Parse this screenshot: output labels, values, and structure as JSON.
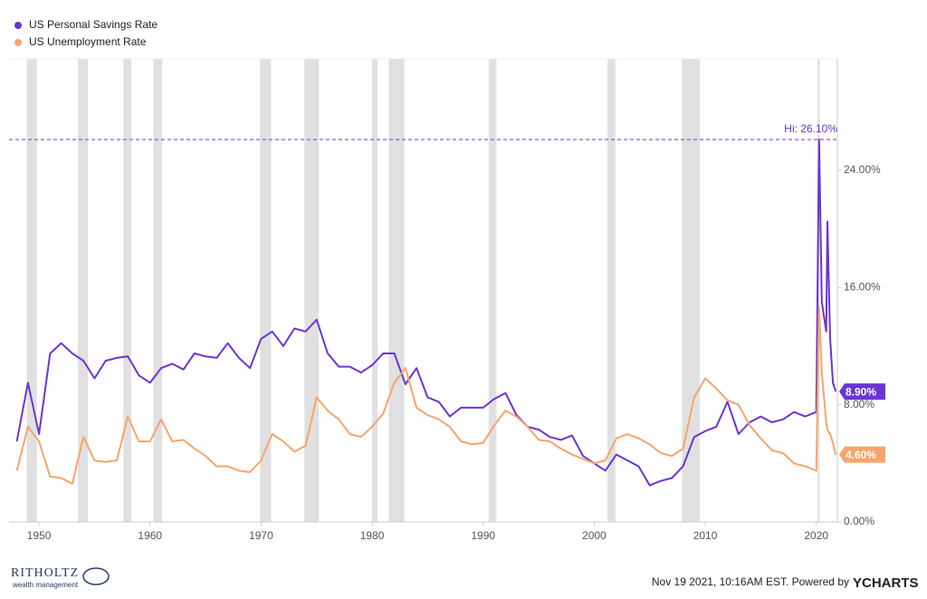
{
  "chart_data": {
    "type": "line",
    "x": [
      1948,
      1949,
      1950,
      1951,
      1952,
      1953,
      1954,
      1955,
      1956,
      1957,
      1958,
      1959,
      1960,
      1961,
      1962,
      1963,
      1964,
      1965,
      1966,
      1967,
      1968,
      1969,
      1970,
      1971,
      1972,
      1973,
      1974,
      1975,
      1976,
      1977,
      1978,
      1979,
      1980,
      1981,
      1982,
      1983,
      1984,
      1985,
      1986,
      1987,
      1988,
      1989,
      1990,
      1991,
      1992,
      1993,
      1994,
      1995,
      1996,
      1997,
      1998,
      1999,
      2000,
      2001,
      2002,
      2003,
      2004,
      2005,
      2006,
      2007,
      2008,
      2009,
      2010,
      2011,
      2012,
      2013,
      2014,
      2015,
      2016,
      2017,
      2018,
      2019,
      2020,
      2020.25,
      2020.5,
      2020.9,
      2021,
      2021.25,
      2021.5,
      2021.75
    ],
    "series": [
      {
        "name": "US Personal Savings Rate",
        "color": "#6a35d4",
        "last_label": "8.90%",
        "values": [
          5.5,
          9.5,
          6,
          11.5,
          12.2,
          11.5,
          11,
          9.8,
          11,
          11.2,
          11.3,
          10,
          9.5,
          10.5,
          10.8,
          10.4,
          11.5,
          11.3,
          11.2,
          12.2,
          11.2,
          10.5,
          12.5,
          13,
          12,
          13.2,
          13,
          13.8,
          11.5,
          10.6,
          10.6,
          10.2,
          10.7,
          11.5,
          11.5,
          9.4,
          10.5,
          8.5,
          8.2,
          7.2,
          7.8,
          7.8,
          7.8,
          8.4,
          8.8,
          7.3,
          6.5,
          6.3,
          5.8,
          5.6,
          5.9,
          4.5,
          4.0,
          3.5,
          4.6,
          4.2,
          3.8,
          2.5,
          2.8,
          3.0,
          3.8,
          5.8,
          6.2,
          6.5,
          8.2,
          6.0,
          6.8,
          7.2,
          6.8,
          7.0,
          7.5,
          7.2,
          7.5,
          26.1,
          15,
          13,
          20.5,
          12.5,
          9.5,
          8.9
        ]
      },
      {
        "name": "US Unemployment Rate",
        "color": "#f6a46c",
        "last_label": "4.60%",
        "values": [
          3.5,
          6.5,
          5.5,
          3.1,
          3.0,
          2.6,
          5.8,
          4.2,
          4.1,
          4.2,
          7.2,
          5.5,
          5.5,
          7.0,
          5.5,
          5.6,
          5.0,
          4.5,
          3.8,
          3.8,
          3.5,
          3.4,
          4.2,
          6.0,
          5.5,
          4.8,
          5.2,
          8.5,
          7.6,
          7.0,
          6.0,
          5.8,
          6.5,
          7.4,
          9.5,
          10.5,
          7.8,
          7.3,
          7.0,
          6.5,
          5.5,
          5.3,
          5.4,
          6.6,
          7.6,
          7.2,
          6.5,
          5.6,
          5.5,
          5.0,
          4.6,
          4.3,
          4.0,
          4.2,
          5.7,
          6.0,
          5.7,
          5.3,
          4.7,
          4.5,
          5.0,
          8.5,
          9.8,
          9.1,
          8.3,
          8.0,
          6.6,
          5.7,
          4.9,
          4.7,
          4.0,
          3.8,
          3.5,
          14.7,
          10.2,
          6.8,
          6.3,
          6.0,
          5.4,
          4.6
        ]
      }
    ],
    "recessions": [
      [
        1948.9,
        1949.8
      ],
      [
        1953.5,
        1954.4
      ],
      [
        1957.6,
        1958.3
      ],
      [
        1960.3,
        1961.1
      ],
      [
        1969.9,
        1970.9
      ],
      [
        1973.9,
        1975.2
      ],
      [
        1980.0,
        1980.5
      ],
      [
        1981.5,
        1982.9
      ],
      [
        1990.5,
        1991.2
      ],
      [
        2001.2,
        2001.9
      ],
      [
        2007.9,
        2009.5
      ],
      [
        2020.1,
        2020.3
      ]
    ],
    "hi": {
      "value": 26.1,
      "label": "Hi: 26.10%"
    },
    "xlim": [
      1947.3,
      2021.9
    ],
    "xticks": [
      1950,
      1960,
      1970,
      1980,
      1990,
      2000,
      2010,
      2020
    ],
    "ylim": [
      0,
      31.6
    ],
    "yticks": [
      {
        "value": 0,
        "label": "0.00%"
      },
      {
        "value": 8,
        "label": "8.00%"
      },
      {
        "value": 16,
        "label": "16.00%"
      },
      {
        "value": 24,
        "label": "24.00%"
      }
    ],
    "grid": false,
    "logo": {
      "name": "RITHOLTZ",
      "tagline": "wealth management"
    },
    "footer": "Nov 19 2021, 10:16AM EST. Powered by",
    "footer_brand": "YCHARTS"
  }
}
